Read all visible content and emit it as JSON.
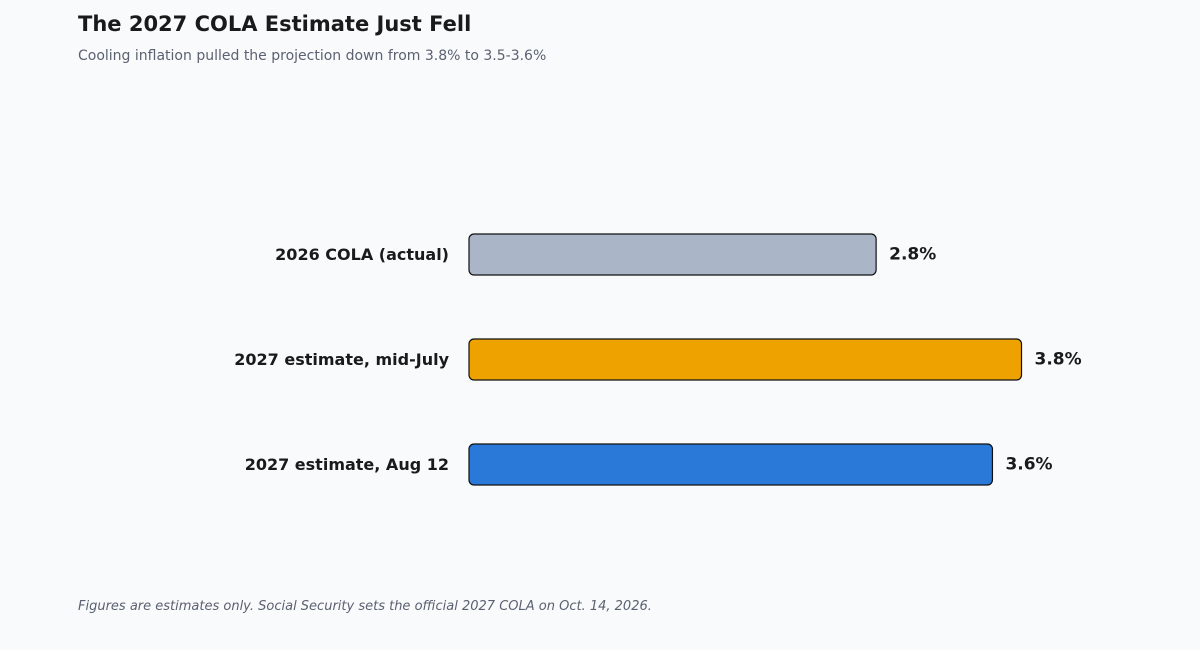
{
  "title": "The 2027 COLA Estimate Just Fell",
  "subtitle": "Cooling inflation pulled the projection down from 3.8% to 3.5-3.6%",
  "footnote": "Figures are estimates only. Social Security sets the official 2027 COLA on Oct. 14, 2026.",
  "chart_data": {
    "type": "bar",
    "orientation": "horizontal",
    "categories": [
      "2026 COLA (actual)",
      "2027 estimate, mid-July",
      "2027 estimate, Aug 12"
    ],
    "values": [
      2.8,
      3.8,
      3.6
    ],
    "value_labels": [
      "2.8%",
      "3.8%",
      "3.6%"
    ],
    "colors": [
      "#aab6c8",
      "#eea200",
      "#2a78d8"
    ],
    "xlabel": "",
    "ylabel": "",
    "grid": false,
    "legend": "none"
  }
}
